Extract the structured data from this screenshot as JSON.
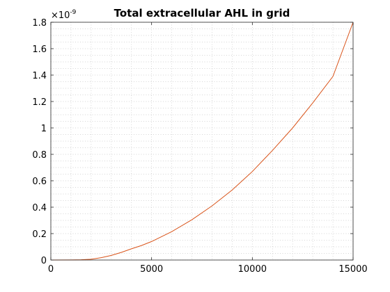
{
  "chart_data": {
    "type": "line",
    "title": "Total extracellular AHL in grid",
    "xlabel": "",
    "ylabel": "",
    "xlim": [
      0,
      15000
    ],
    "ylim": [
      0,
      1.8e-09
    ],
    "x_ticks": [
      0,
      5000,
      10000,
      15000
    ],
    "x_tick_labels": [
      "0",
      "5000",
      "10000",
      "15000"
    ],
    "y_ticks": [
      0,
      0.2,
      0.4,
      0.6,
      0.8,
      1.0,
      1.2,
      1.4,
      1.6,
      1.8
    ],
    "y_tick_labels": [
      "0",
      "0.2",
      "0.4",
      "0.6",
      "0.8",
      "1",
      "1.2",
      "1.4",
      "1.6",
      "1.8"
    ],
    "y_exponent_base": "×10",
    "y_exponent_power": "-9",
    "grid": "dotted-minor",
    "line_color": "#d95319",
    "series": [
      {
        "name": "",
        "x": [
          0,
          1000,
          1500,
          2000,
          2500,
          3000,
          3500,
          4000,
          4500,
          5000,
          6000,
          7000,
          8000,
          9000,
          10000,
          11000,
          12000,
          13000,
          14000,
          15000
        ],
        "y": [
          0,
          8e-13,
          2e-12,
          6e-12,
          1.8e-11,
          3.5e-11,
          5.8e-11,
          8.5e-11,
          1.1e-10,
          1.4e-10,
          2.15e-10,
          3.05e-10,
          4.1e-10,
          5.3e-10,
          6.7e-10,
          8.3e-10,
          1e-09,
          1.19e-09,
          1.39e-09,
          1.8e-09
        ]
      }
    ]
  }
}
